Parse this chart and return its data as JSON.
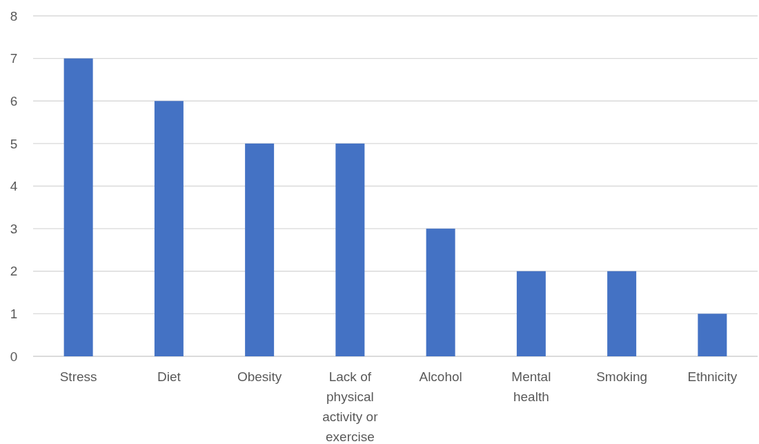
{
  "chart_data": {
    "type": "bar",
    "categories": [
      "Stress",
      "Diet",
      "Obesity",
      "Lack of physical activity or exercise",
      "Alcohol",
      "Mental health",
      "Smoking",
      "Ethnicity"
    ],
    "values": [
      7,
      6,
      5,
      5,
      3,
      2,
      2,
      1
    ],
    "color": "#4472c4",
    "ylim": [
      0,
      8
    ],
    "yticks": [
      0,
      1,
      2,
      3,
      4,
      5,
      6,
      7,
      8
    ],
    "grid": "y"
  }
}
